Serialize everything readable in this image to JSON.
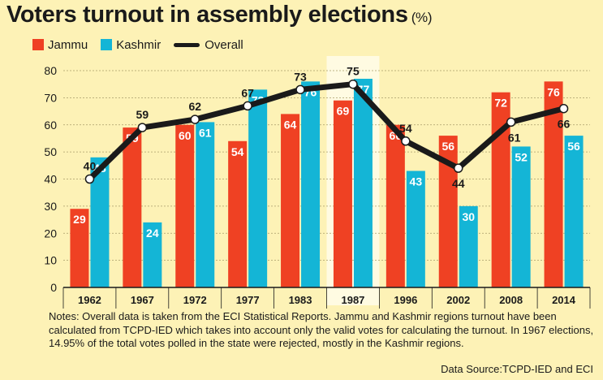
{
  "title": "Voters turnout in assembly elections",
  "title_unit": "(%)",
  "notes": "Notes: Overall data is taken from the ECI Statistical Reports. Jammu and Kashmir regions turnout have been calculated from TCPD-IED which takes into account only the valid votes for calculating the turnout. In 1967 elections, 14.95% of the total votes polled in the state were rejected, mostly in the Kashmir regions.",
  "source": "Data Source:TCPD-IED and ECI",
  "colors": {
    "jammu": "#ef4123",
    "kashmir": "#14b5d6",
    "overall": "#1a1a1a",
    "highlight": "#fffbe2"
  },
  "chart_data": {
    "type": "bar",
    "categories": [
      "1962",
      "1967",
      "1972",
      "1977",
      "1983",
      "1987",
      "1996",
      "2002",
      "2008",
      "2014"
    ],
    "series": [
      {
        "name": "Jammu",
        "type": "bar",
        "values": [
          29,
          59,
          60,
          54,
          64,
          69,
          60,
          56,
          72,
          76
        ]
      },
      {
        "name": "Kashmir",
        "type": "bar",
        "values": [
          48,
          24,
          61,
          73,
          76,
          77,
          43,
          30,
          52,
          56
        ]
      },
      {
        "name": "Overall",
        "type": "line",
        "values": [
          40,
          59,
          62,
          67,
          73,
          75,
          54,
          44,
          61,
          66
        ]
      }
    ],
    "y_ticks": [
      "0",
      "10",
      "20",
      "30",
      "40",
      "50",
      "60",
      "70",
      "80"
    ],
    "ylim": [
      0,
      80
    ],
    "grid": true,
    "highlighted_category": "1987",
    "legend_position": "top-left"
  }
}
